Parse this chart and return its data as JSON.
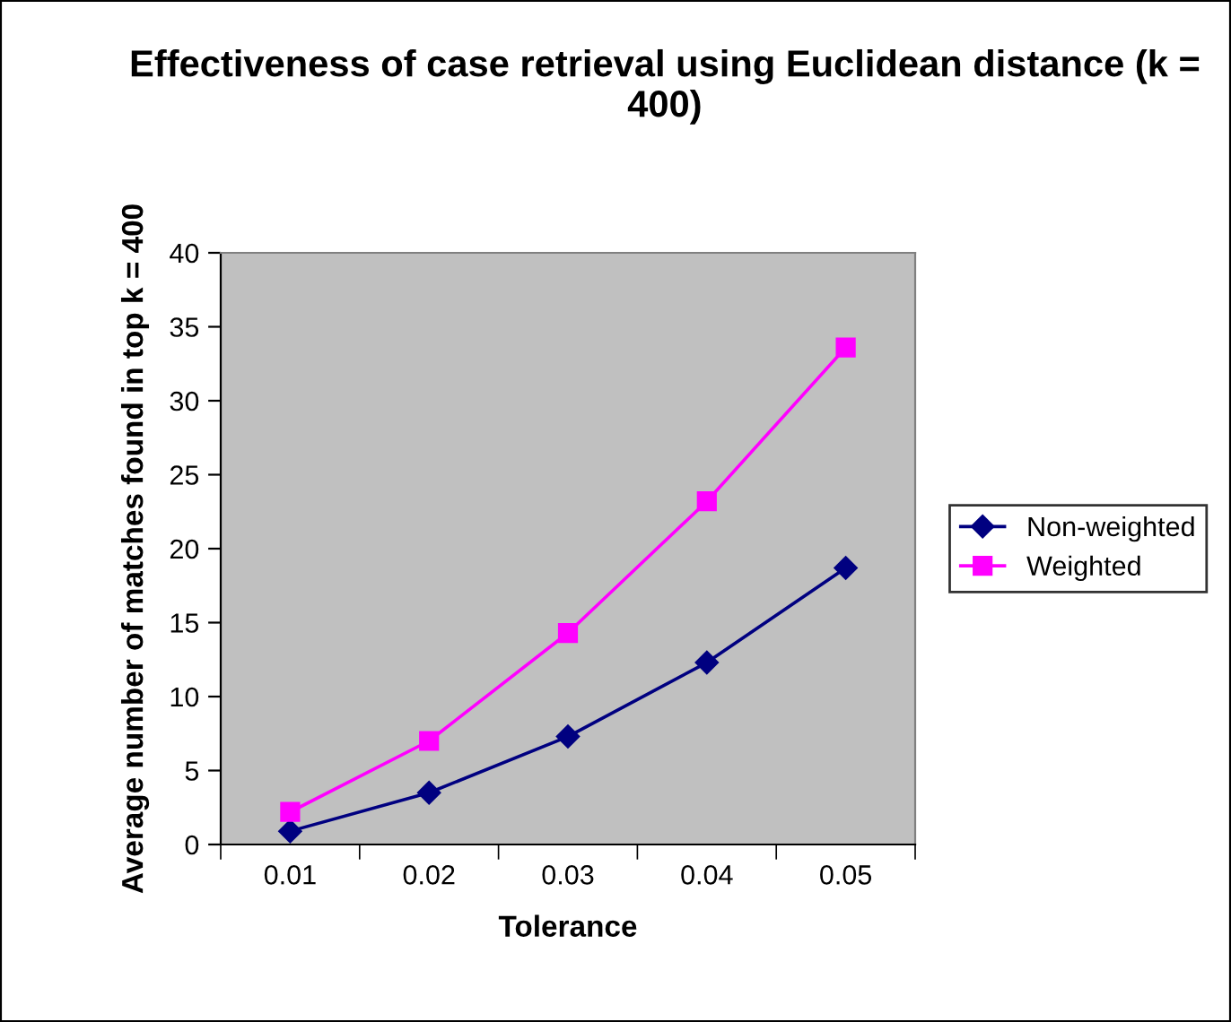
{
  "chart_data": {
    "type": "line",
    "title": "Effectiveness of case retrieval using Euclidean distance (k = 400)",
    "xlabel": "Tolerance",
    "ylabel": "Average number of matches found in top k = 400",
    "categories": [
      "0.01",
      "0.02",
      "0.03",
      "0.04",
      "0.05"
    ],
    "series": [
      {
        "name": "Non-weighted",
        "color": "#000080",
        "marker": "diamond",
        "values": [
          0.9,
          3.5,
          7.3,
          12.3,
          18.7
        ]
      },
      {
        "name": "Weighted",
        "color": "#ff00ff",
        "marker": "square",
        "values": [
          2.2,
          7.0,
          14.3,
          23.2,
          33.6
        ]
      }
    ],
    "ylim": [
      0,
      40
    ],
    "yticks": [
      0,
      5,
      10,
      15,
      20,
      25,
      30,
      35,
      40
    ],
    "grid": false,
    "legend": "right",
    "line_style": "solid"
  }
}
